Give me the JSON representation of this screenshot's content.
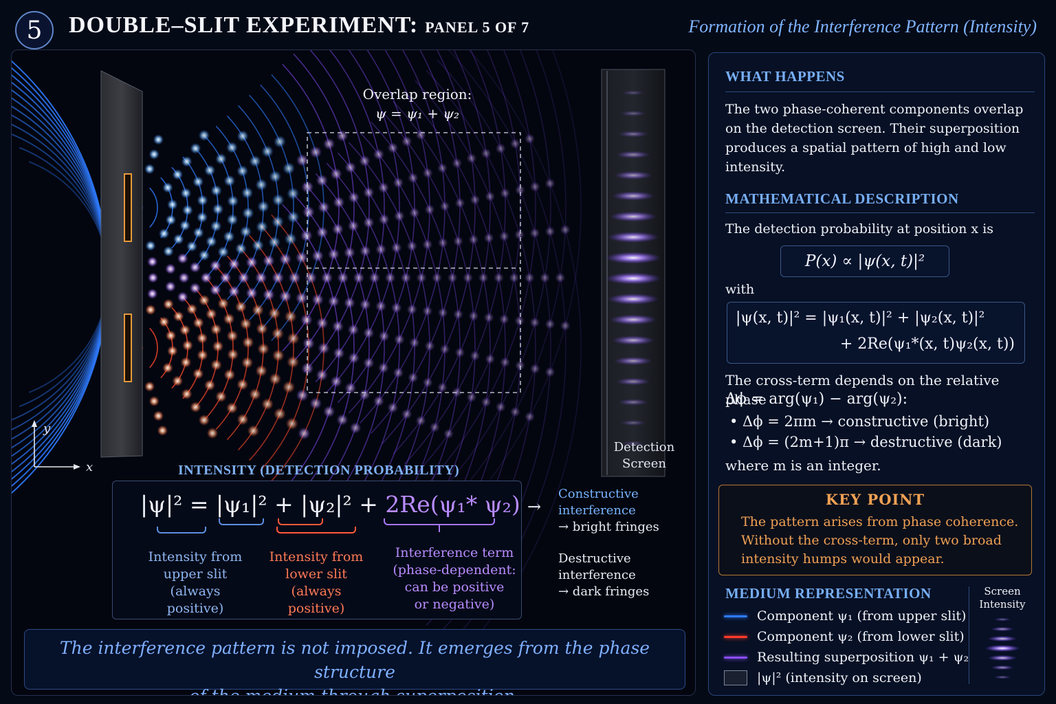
{
  "header": {
    "panel_number": "5",
    "title": "DOUBLE–SLIT EXPERIMENT:",
    "panel_label": "PANEL 5 OF 7",
    "subtitle": "Formation of the Interference Pattern (Intensity)"
  },
  "diagram": {
    "overlap_label_line1": "Overlap region:",
    "overlap_label_line2": "ψ = ψ₁ + ψ₂",
    "detection_label_line1": "Detection",
    "detection_label_line2": "Screen",
    "axis_y": "y",
    "axis_x": "x",
    "colors": {
      "upper": "#2f7bff",
      "lower": "#ff4a2a",
      "superposition": "#8a4dff",
      "background": "#03060f"
    }
  },
  "intensity": {
    "heading": "INTENSITY (DETECTION PROBABILITY)",
    "formula_upper": "|ψ|² = |ψ₁|² + |ψ₂|² + ",
    "formula_cross": "2Re(ψ₁* ψ₂)",
    "upper_slit": [
      "Intensity from",
      "upper slit",
      "(always positive)"
    ],
    "lower_slit": [
      "Intensity from",
      "lower slit",
      "(always positive)"
    ],
    "cross_term": [
      "Interference term",
      "(phase-dependent:",
      "can be positive",
      "or negative)"
    ],
    "arrow": "→",
    "constructive": [
      "Constructive",
      "interference",
      "→ bright fringes"
    ],
    "destructive": [
      "Destructive",
      "interference",
      "→ dark fringes"
    ]
  },
  "bottom_note": {
    "line1": "The interference pattern is not imposed. It emerges from the phase structure",
    "line2": "of the medium through superposition."
  },
  "sidebar": {
    "what_happens": {
      "heading": "WHAT HAPPENS",
      "text": "The two phase-coherent components overlap on the detection screen. Their superposition produces a spatial pattern of high and low intensity."
    },
    "math": {
      "heading": "MATHEMATICAL DESCRIPTION",
      "intro": "The detection probability at position x is",
      "formula_p": "P(x) ∝ |ψ(x, t)|²",
      "with": "with",
      "formula_expand_1": "|ψ(x, t)|² = |ψ₁(x, t)|² + |ψ₂(x, t)|²",
      "formula_expand_2": "+ 2Re(ψ₁*(x, t)ψ₂(x, t))",
      "cross_intro_1": "The cross-term depends on the relative phase",
      "cross_intro_2": "Δϕ = arg(ψ₁) − arg(ψ₂):",
      "bullet_1": "•  Δϕ = 2πm      → constructive (bright)",
      "bullet_2": "•  Δϕ = (2m+1)π → destructive (dark)",
      "outro": "where m is an integer."
    },
    "key_point": {
      "heading": "KEY POINT",
      "text": "The pattern arises from phase coherence. Without the cross-term, only two broad intensity humps would appear."
    },
    "medium": {
      "heading": "MEDIUM REPRESENTATION",
      "items": [
        {
          "label": "Component ψ₁ (from upper slit)",
          "color": "#2f7bff"
        },
        {
          "label": "Component ψ₂ (from lower slit)",
          "color": "#ff3b2a"
        },
        {
          "label": "Resulting superposition ψ₁ + ψ₂",
          "color": "#8a4dff"
        },
        {
          "label": "|ψ|²  (intensity on screen)",
          "color": "#1a2030"
        }
      ],
      "screen_intensity_label_1": "Screen",
      "screen_intensity_label_2": "Intensity"
    }
  }
}
